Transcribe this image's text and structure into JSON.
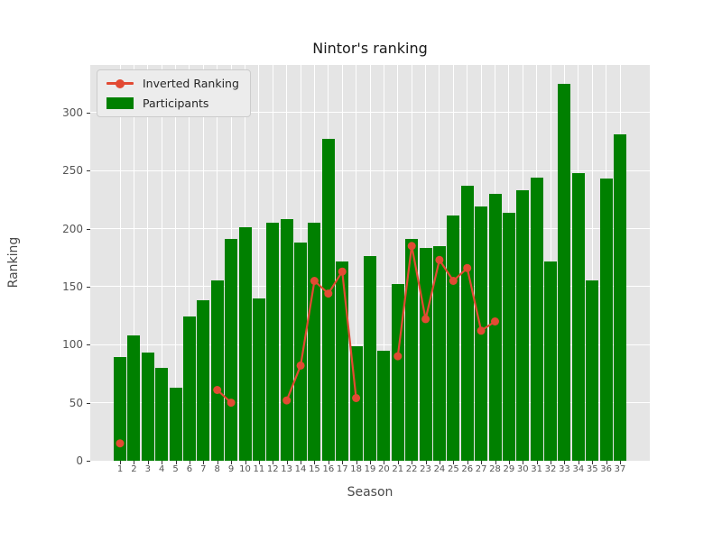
{
  "chart_data": {
    "type": "bar+line",
    "title": "Nintor's ranking",
    "xlabel": "Season",
    "ylabel": "Ranking",
    "categories": [
      "1",
      "2",
      "3",
      "4",
      "5",
      "6",
      "7",
      "8",
      "9",
      "10",
      "11",
      "12",
      "13",
      "14",
      "15",
      "16",
      "17",
      "18",
      "19",
      "20",
      "21",
      "22",
      "23",
      "24",
      "25",
      "26",
      "27",
      "28",
      "29",
      "30",
      "31",
      "32",
      "33",
      "34",
      "35",
      "36",
      "37"
    ],
    "series": [
      {
        "name": "Inverted Ranking",
        "type": "line",
        "color": "#e24a33",
        "values": [
          15,
          null,
          null,
          null,
          null,
          null,
          null,
          61,
          50,
          null,
          null,
          null,
          52,
          82,
          155,
          144,
          163,
          54,
          null,
          null,
          90,
          185,
          122,
          173,
          155,
          166,
          112,
          120,
          null,
          null,
          null,
          null,
          null,
          null,
          null,
          null,
          null
        ]
      },
      {
        "name": "Participants",
        "type": "bar",
        "color": "#008000",
        "values": [
          89,
          108,
          93,
          80,
          63,
          124,
          138,
          155,
          191,
          201,
          140,
          205,
          208,
          188,
          205,
          277,
          172,
          99,
          176,
          95,
          152,
          191,
          183,
          185,
          211,
          237,
          219,
          230,
          214,
          233,
          244,
          172,
          325,
          248,
          155,
          243,
          281
        ]
      }
    ],
    "ylim": [
      0,
      341
    ],
    "yticks": [
      0,
      50,
      100,
      150,
      200,
      250,
      300
    ],
    "grid": true,
    "legend_position": "upper left",
    "plot_background": "#e5e5e5",
    "gridline_color": "#ffffff"
  }
}
